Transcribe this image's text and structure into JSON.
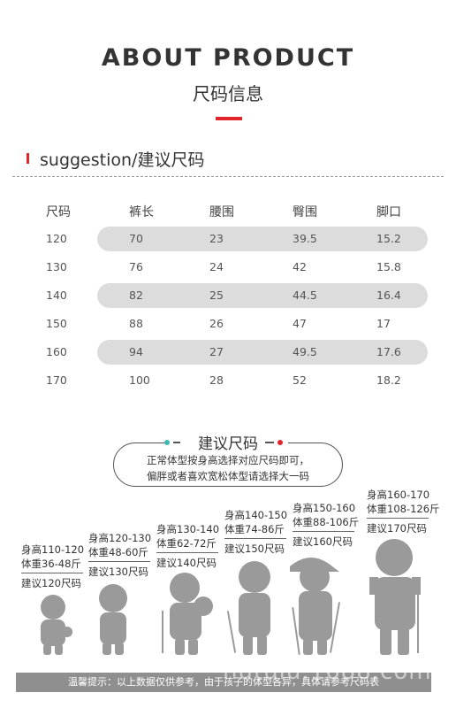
{
  "header": {
    "title": "ABOUT PRODUCT",
    "subtitle": "尺码信息"
  },
  "section": {
    "label": "suggestion/建议尺码"
  },
  "table": {
    "columns": [
      "尺码",
      "裤长",
      "腰围",
      "臀围",
      "脚口"
    ],
    "rows": [
      [
        "120",
        "70",
        "23",
        "39.5",
        "15.2"
      ],
      [
        "130",
        "76",
        "24",
        "42",
        "15.8"
      ],
      [
        "140",
        "82",
        "25",
        "44.5",
        "16.4"
      ],
      [
        "150",
        "88",
        "26",
        "47",
        "17"
      ],
      [
        "160",
        "94",
        "27",
        "49.5",
        "17.6"
      ],
      [
        "170",
        "100",
        "28",
        "52",
        "18.2"
      ]
    ]
  },
  "tip": {
    "title": "建议尺码",
    "line1": "正常体型按身高选择对应尺码即可，",
    "line2": "偏胖或者喜欢宽松体型请选择大一码"
  },
  "kids": [
    {
      "height": "身高110-120",
      "weight": "体重36-48斤",
      "size": "建议120尺码"
    },
    {
      "height": "身高120-130",
      "weight": "体重48-60斤",
      "size": "建议130尺码"
    },
    {
      "height": "身高130-140",
      "weight": "体重62-72斤",
      "size": "建议140尺码"
    },
    {
      "height": "身高140-150",
      "weight": "体重74-86斤",
      "size": "建议150尺码"
    },
    {
      "height": "身高150-160",
      "weight": "体重88-106斤",
      "size": "建议160尺码"
    },
    {
      "height": "身高160-170",
      "weight": "体重108-126斤",
      "size": "建议170尺码"
    }
  ],
  "footer": {
    "text": "温馨提示：以上数据仅供参考，由于孩子的体型各异，具体请参考尺码表"
  },
  "watermark": "hutuiu.1688.com",
  "colors": {
    "accent": "#e0262a",
    "band": "#dcdcdc",
    "dot_teal": "#3bb8b0",
    "dot_red": "#e0262a"
  }
}
